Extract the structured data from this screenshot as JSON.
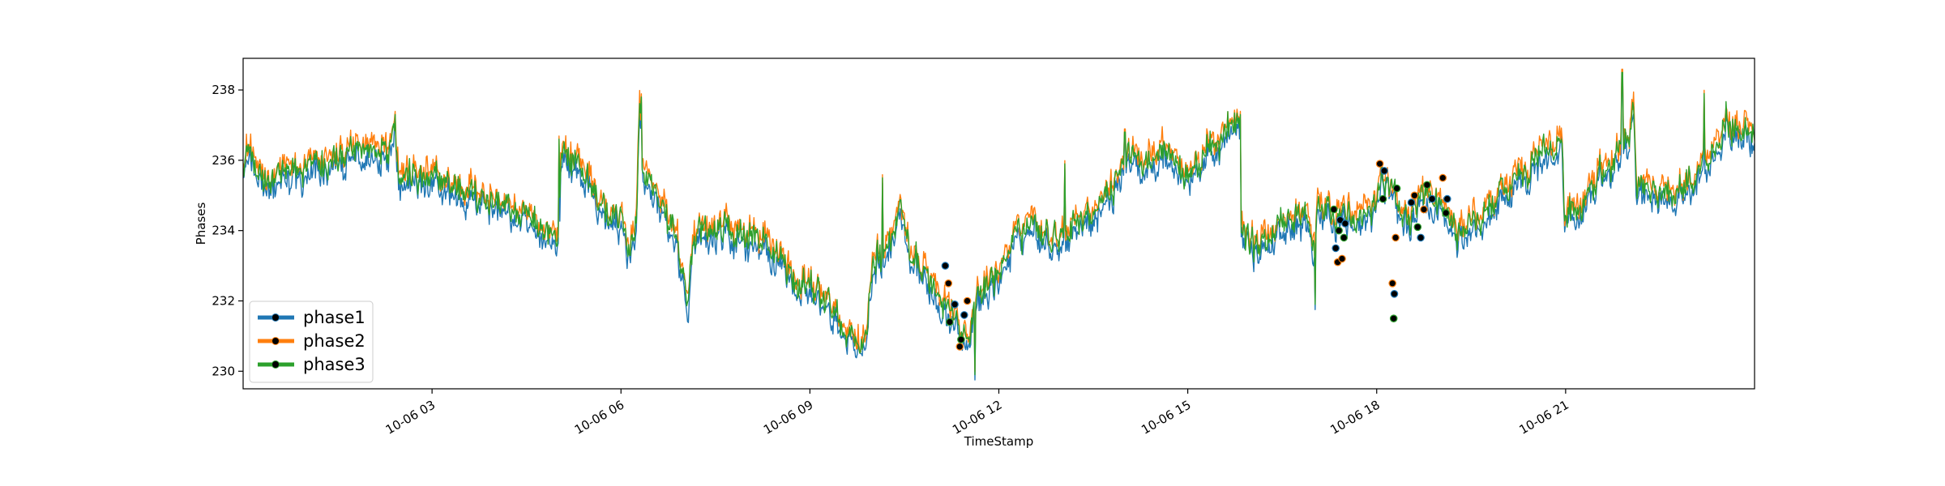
{
  "chart_data": {
    "type": "line",
    "title": "",
    "xlabel": "TimeStamp",
    "ylabel": "Phases",
    "x_range_hours": [
      0.0,
      24.0
    ],
    "ylim": [
      229.5,
      238.9
    ],
    "x_ticks": [
      {
        "value": 3,
        "label": "10-06 03"
      },
      {
        "value": 6,
        "label": "10-06 06"
      },
      {
        "value": 9,
        "label": "10-06 09"
      },
      {
        "value": 12,
        "label": "10-06 12"
      },
      {
        "value": 15,
        "label": "10-06 15"
      },
      {
        "value": 18,
        "label": "10-06 18"
      },
      {
        "value": 21,
        "label": "10-06 21"
      }
    ],
    "y_ticks": [
      230,
      232,
      234,
      236,
      238
    ],
    "grid": false,
    "legend_placement": "lower-left",
    "series": [
      {
        "name": "phase1",
        "color": "#1f77b4",
        "offset": -0.25,
        "noise": 0.32
      },
      {
        "name": "phase2",
        "color": "#ff7f0e",
        "offset": 0.15,
        "noise": 0.32
      },
      {
        "name": "phase3",
        "color": "#2ca02c",
        "offset": 0.0,
        "noise": 0.32
      }
    ],
    "base_profile": [
      [
        0.0,
        236.0
      ],
      [
        0.1,
        236.4
      ],
      [
        0.25,
        235.4
      ],
      [
        0.5,
        235.5
      ],
      [
        1.0,
        235.7
      ],
      [
        1.5,
        236.0
      ],
      [
        2.0,
        236.3
      ],
      [
        2.3,
        236.5
      ],
      [
        2.4,
        237.1
      ],
      [
        2.48,
        235.7
      ],
      [
        3.0,
        235.4
      ],
      [
        3.5,
        235.2
      ],
      [
        4.0,
        234.9
      ],
      [
        4.5,
        234.3
      ],
      [
        4.9,
        233.9
      ],
      [
        5.0,
        233.6
      ],
      [
        5.05,
        236.2
      ],
      [
        5.4,
        235.8
      ],
      [
        5.7,
        234.6
      ],
      [
        6.0,
        234.3
      ],
      [
        6.1,
        233.3
      ],
      [
        6.25,
        234.5
      ],
      [
        6.3,
        237.5
      ],
      [
        6.35,
        235.7
      ],
      [
        6.6,
        234.9
      ],
      [
        6.9,
        233.7
      ],
      [
        7.05,
        231.6
      ],
      [
        7.15,
        233.7
      ],
      [
        7.6,
        234.0
      ],
      [
        8.0,
        233.8
      ],
      [
        8.5,
        233.4
      ],
      [
        8.8,
        232.4
      ],
      [
        9.2,
        232.1
      ],
      [
        9.5,
        231.3
      ],
      [
        9.8,
        230.9
      ],
      [
        9.9,
        230.9
      ],
      [
        10.0,
        233.2
      ],
      [
        10.2,
        233.4
      ],
      [
        10.45,
        234.6
      ],
      [
        10.6,
        233.0
      ],
      [
        11.0,
        232.5
      ],
      [
        11.3,
        231.5
      ],
      [
        11.55,
        231.0
      ],
      [
        11.65,
        232.0
      ],
      [
        11.95,
        232.7
      ],
      [
        12.2,
        233.6
      ],
      [
        12.5,
        234.3
      ],
      [
        12.9,
        233.8
      ],
      [
        13.2,
        234.3
      ],
      [
        13.5,
        234.6
      ],
      [
        13.8,
        235.2
      ],
      [
        14.0,
        236.1
      ],
      [
        14.3,
        236.0
      ],
      [
        14.6,
        236.5
      ],
      [
        15.0,
        235.5
      ],
      [
        15.3,
        236.2
      ],
      [
        15.65,
        236.8
      ],
      [
        15.82,
        237.1
      ],
      [
        15.84,
        234.1
      ],
      [
        16.1,
        233.5
      ],
      [
        16.5,
        234.2
      ],
      [
        16.9,
        234.5
      ],
      [
        17.0,
        233.3
      ],
      [
        17.05,
        234.7
      ],
      [
        17.3,
        234.4
      ],
      [
        17.5,
        234.5
      ],
      [
        17.9,
        234.6
      ],
      [
        18.1,
        235.6
      ],
      [
        18.25,
        235.0
      ],
      [
        18.5,
        234.4
      ],
      [
        18.7,
        234.9
      ],
      [
        19.0,
        234.8
      ],
      [
        19.3,
        233.8
      ],
      [
        19.6,
        234.3
      ],
      [
        20.0,
        235.0
      ],
      [
        20.5,
        236.0
      ],
      [
        20.95,
        236.6
      ],
      [
        20.98,
        234.5
      ],
      [
        21.3,
        234.7
      ],
      [
        21.6,
        235.6
      ],
      [
        22.0,
        236.6
      ],
      [
        22.08,
        237.6
      ],
      [
        22.12,
        235.3
      ],
      [
        22.5,
        235.1
      ],
      [
        22.9,
        235.2
      ],
      [
        23.3,
        236.2
      ],
      [
        23.55,
        237.2
      ],
      [
        23.75,
        236.8
      ],
      [
        24.0,
        236.9
      ]
    ],
    "spikes": [
      [
        2.42,
        237.3
      ],
      [
        5.02,
        236.6
      ],
      [
        6.32,
        237.8
      ],
      [
        10.15,
        235.5
      ],
      [
        11.62,
        229.9
      ],
      [
        13.05,
        235.9
      ],
      [
        14.0,
        236.8
      ],
      [
        15.84,
        237.3
      ],
      [
        17.02,
        231.9
      ],
      [
        21.9,
        238.5
      ],
      [
        23.2,
        237.9
      ]
    ],
    "markers": [
      [
        11.15,
        233.0
      ],
      [
        11.2,
        232.5
      ],
      [
        11.22,
        231.4
      ],
      [
        11.3,
        231.9
      ],
      [
        11.38,
        230.7
      ],
      [
        11.4,
        230.9
      ],
      [
        11.45,
        231.6
      ],
      [
        11.5,
        232.0
      ],
      [
        17.32,
        234.6
      ],
      [
        17.35,
        233.5
      ],
      [
        17.38,
        233.1
      ],
      [
        17.4,
        234.0
      ],
      [
        17.42,
        234.3
      ],
      [
        17.45,
        233.2
      ],
      [
        17.48,
        233.8
      ],
      [
        17.5,
        234.2
      ],
      [
        18.05,
        235.9
      ],
      [
        18.1,
        234.9
      ],
      [
        18.12,
        235.7
      ],
      [
        18.25,
        232.5
      ],
      [
        18.27,
        231.5
      ],
      [
        18.28,
        232.2
      ],
      [
        18.3,
        233.8
      ],
      [
        18.32,
        235.2
      ],
      [
        18.55,
        234.8
      ],
      [
        18.6,
        235.0
      ],
      [
        18.65,
        234.1
      ],
      [
        18.7,
        233.8
      ],
      [
        18.75,
        234.6
      ],
      [
        18.8,
        235.3
      ],
      [
        18.88,
        234.9
      ],
      [
        19.05,
        235.5
      ],
      [
        19.1,
        234.5
      ],
      [
        19.12,
        234.9
      ]
    ]
  }
}
